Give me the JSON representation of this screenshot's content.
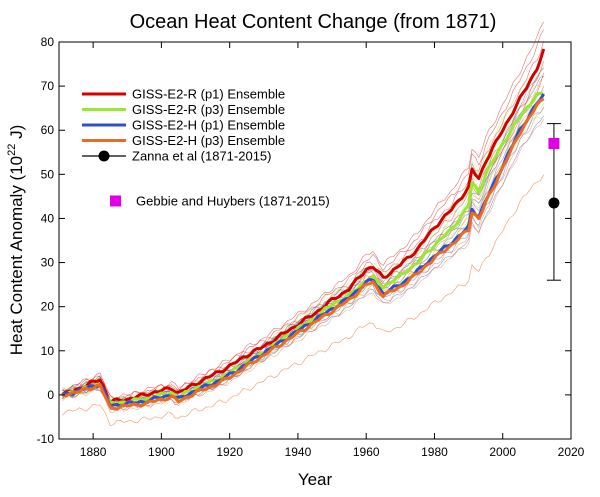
{
  "chart_data": {
    "type": "line",
    "title": "Ocean Heat Content Change (from 1871)",
    "xlabel": "Year",
    "ylabel": "Heat Content Anomaly (10",
    "ylabel_sup": "22",
    "ylabel_suffix": " J)",
    "xlim": [
      1870,
      2020
    ],
    "ylim": [
      -10,
      80
    ],
    "xticks": [
      1880,
      1900,
      1920,
      1940,
      1960,
      1980,
      2000,
      2020
    ],
    "yticks": [
      -10,
      0,
      10,
      20,
      30,
      40,
      50,
      60,
      70,
      80
    ],
    "grid": false,
    "legend_position": "upper-left",
    "x": [
      1871,
      1876,
      1882,
      1883,
      1885,
      1890,
      1895,
      1900,
      1903,
      1905,
      1910,
      1915,
      1920,
      1925,
      1930,
      1935,
      1940,
      1945,
      1950,
      1955,
      1960,
      1962,
      1965,
      1970,
      1975,
      1980,
      1985,
      1990,
      1991,
      1993,
      1995,
      2000,
      2005,
      2010,
      2012
    ],
    "series": [
      {
        "name": "GISS-E2-R (p1) Ensemble",
        "color": "#d40000",
        "values": [
          0,
          1.5,
          3.5,
          2,
          -1.5,
          -1,
          0,
          1,
          1.5,
          0.5,
          2.5,
          4.5,
          6.5,
          9,
          11,
          13.5,
          16,
          18.5,
          21.5,
          24,
          28.5,
          29,
          26.5,
          29.5,
          33,
          38,
          42,
          47,
          51,
          49,
          53,
          60,
          67,
          74,
          78
        ]
      },
      {
        "name": "GISS-E2-R (p3) Ensemble",
        "color": "#99e832",
        "values": [
          0,
          1,
          2.5,
          1,
          -2,
          -1.5,
          -1,
          0,
          0.5,
          -0.5,
          1.5,
          3,
          5,
          7.5,
          9.5,
          12.5,
          15,
          17.5,
          20.5,
          22.5,
          26,
          26.5,
          24.5,
          27,
          30,
          34,
          37.5,
          43,
          48,
          46,
          50,
          57,
          63,
          68,
          68
        ]
      },
      {
        "name": "GISS-E2-H (p1) Ensemble",
        "color": "#2e4fd4",
        "values": [
          0,
          1,
          2.5,
          1,
          -2.5,
          -2,
          -1.5,
          -0.5,
          0,
          -1,
          1,
          2.5,
          4.5,
          7,
          9.5,
          12,
          14.5,
          17,
          19.5,
          22,
          25.5,
          26,
          23,
          25,
          28,
          31.5,
          34.5,
          38,
          42,
          40.5,
          44,
          52,
          60,
          66,
          68
        ]
      },
      {
        "name": "GISS-E2-H (p3) Ensemble",
        "color": "#ee6a1e",
        "values": [
          0,
          0.8,
          2.2,
          0.5,
          -3,
          -2.5,
          -2,
          -1,
          -0.5,
          -1.5,
          0.5,
          2,
          4,
          6.5,
          9,
          11.5,
          14,
          16.5,
          19,
          21.5,
          25,
          25.5,
          22.5,
          24.5,
          27.5,
          31,
          34,
          37.5,
          41.5,
          40,
          43.5,
          51.5,
          59.5,
          65.5,
          67.5
        ]
      }
    ],
    "observations": [
      {
        "name": "Zanna et al (1871-2015)",
        "color": "#000000",
        "marker": "circle",
        "x": 2015,
        "y": 43.5,
        "y_low": 26,
        "y_high": 61.5
      },
      {
        "name": "Gebbie and Huybers (1871-2015)",
        "color": "#e100e6",
        "marker": "square",
        "x": 2015,
        "y": 57
      }
    ]
  }
}
